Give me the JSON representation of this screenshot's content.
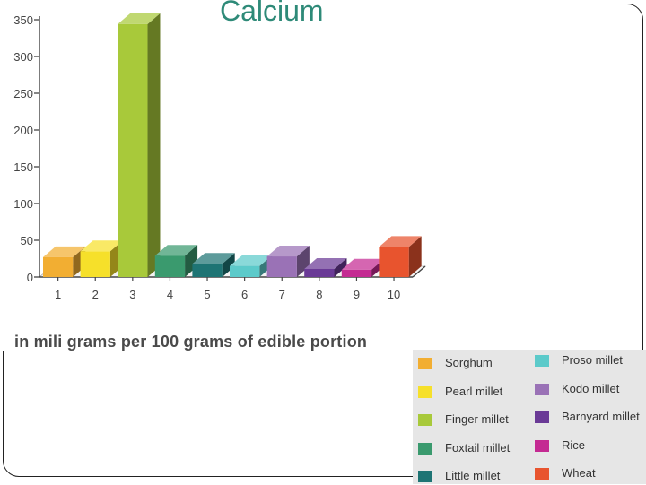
{
  "chart_data": {
    "type": "bar",
    "title": "Calcium",
    "subtitle": "in mili grams per 100 grams of edible portion",
    "categories": [
      "1",
      "2",
      "3",
      "4",
      "5",
      "6",
      "7",
      "8",
      "9",
      "10"
    ],
    "values": [
      27,
      35,
      344,
      29,
      18,
      15,
      28,
      11,
      10,
      41
    ],
    "ylim": [
      0,
      350
    ],
    "yticks": [
      0,
      50,
      100,
      150,
      200,
      250,
      300,
      350
    ],
    "grid": false,
    "legend_position": "bottom-right",
    "series_legend": [
      {
        "name": "Sorghum",
        "color": "#f2ae32"
      },
      {
        "name": "Pearl millet",
        "color": "#f6e02a"
      },
      {
        "name": "Finger millet",
        "color": "#a8c93a"
      },
      {
        "name": "Foxtail millet",
        "color": "#3a9a6e"
      },
      {
        "name": "Little millet",
        "color": "#1e7474"
      },
      {
        "name": "Proso millet",
        "color": "#5ccaca"
      },
      {
        "name": "Kodo millet",
        "color": "#9a72b6"
      },
      {
        "name": "Barnyard millet",
        "color": "#6a3a96"
      },
      {
        "name": "Rice",
        "color": "#c42a92"
      },
      {
        "name": "Wheat",
        "color": "#e8542e"
      }
    ]
  }
}
